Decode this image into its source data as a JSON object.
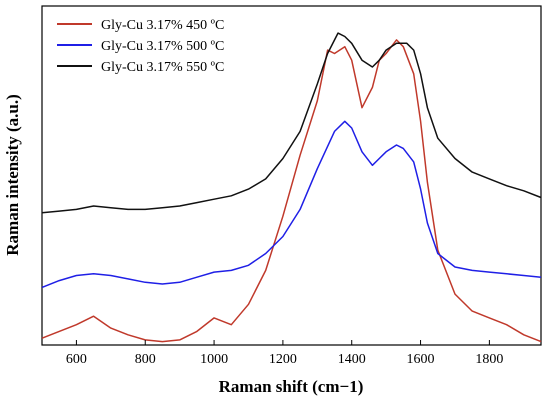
{
  "chart_data": {
    "type": "line",
    "xlabel": "Raman shift (cm−1)",
    "ylabel": "Raman intensity (a.u.)",
    "xlim": [
      500,
      1950
    ],
    "ylim": [
      0,
      100
    ],
    "x_ticks": [
      600,
      800,
      1000,
      1200,
      1400,
      1600,
      1800
    ],
    "y_ticks_shown": false,
    "legend_position": "top-left",
    "grid": false,
    "series": [
      {
        "name": "Gly-Cu 3.17% 450 ºC",
        "color": "#c0392b",
        "x": [
          500,
          550,
          600,
          650,
          700,
          750,
          800,
          850,
          900,
          950,
          1000,
          1050,
          1100,
          1150,
          1200,
          1250,
          1300,
          1330,
          1350,
          1380,
          1400,
          1430,
          1460,
          1480,
          1500,
          1530,
          1550,
          1580,
          1600,
          1620,
          1650,
          1700,
          1750,
          1800,
          1850,
          1900,
          1950
        ],
        "y": [
          2,
          4,
          6,
          8.5,
          5,
          3,
          1.5,
          1,
          1.5,
          4,
          8,
          6,
          12,
          22,
          38,
          56,
          72,
          87,
          86,
          88,
          84,
          70,
          76,
          84,
          86,
          90,
          88,
          80,
          66,
          48,
          28,
          15,
          10,
          8,
          6,
          3,
          1
        ]
      },
      {
        "name": "Gly-Cu 3.17% 500 ºC",
        "color": "#1f1fe6",
        "x": [
          500,
          550,
          600,
          650,
          700,
          750,
          800,
          850,
          900,
          950,
          1000,
          1050,
          1100,
          1150,
          1200,
          1250,
          1300,
          1350,
          1380,
          1400,
          1430,
          1460,
          1480,
          1500,
          1530,
          1550,
          1580,
          1600,
          1620,
          1650,
          1700,
          1750,
          1800,
          1850,
          1900,
          1950
        ],
        "y": [
          17,
          19,
          20.5,
          21,
          20.5,
          19.5,
          18.5,
          18,
          18.5,
          20,
          21.5,
          22,
          23.5,
          27,
          32,
          40,
          52,
          63,
          66,
          64,
          57,
          53,
          55,
          57,
          59,
          58,
          54,
          46,
          36,
          27,
          23,
          22,
          21.5,
          21,
          20.5,
          20
        ]
      },
      {
        "name": "Gly-Cu 3.17% 550 ºC",
        "color": "#111111",
        "x": [
          500,
          550,
          600,
          650,
          700,
          750,
          800,
          850,
          900,
          950,
          1000,
          1050,
          1100,
          1150,
          1200,
          1250,
          1300,
          1330,
          1360,
          1380,
          1400,
          1430,
          1460,
          1480,
          1500,
          1530,
          1560,
          1580,
          1600,
          1620,
          1650,
          1700,
          1750,
          1800,
          1850,
          1900,
          1950
        ],
        "y": [
          39,
          39.5,
          40,
          41,
          40.5,
          40,
          40,
          40.5,
          41,
          42,
          43,
          44,
          46,
          49,
          55,
          63,
          77,
          86,
          92,
          91,
          89,
          84,
          82,
          84,
          87,
          89,
          89,
          87,
          80,
          70,
          61,
          55,
          51,
          49,
          47,
          45.5,
          43.5
        ]
      }
    ]
  },
  "colors": {
    "background": "#ffffff",
    "axis": "#000000"
  }
}
